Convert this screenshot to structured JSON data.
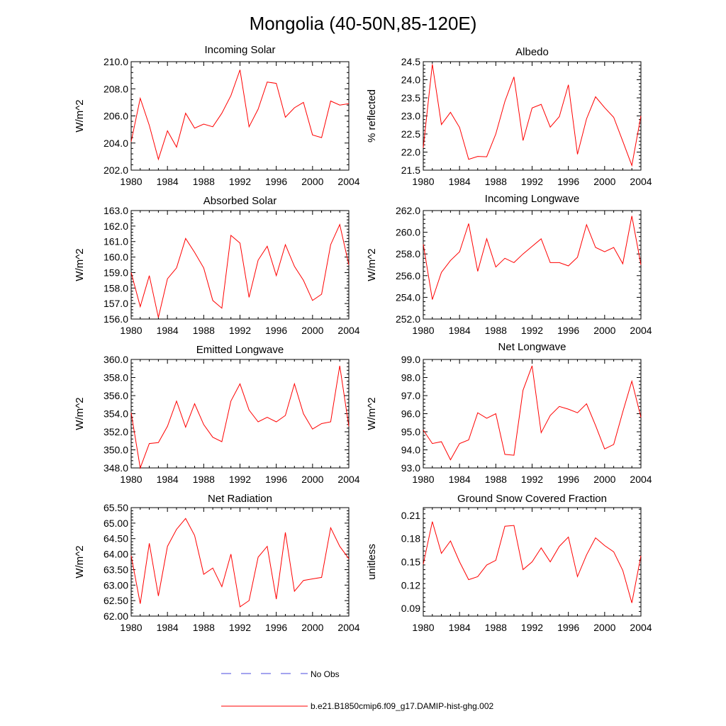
{
  "figure_title": "Mongolia (40-50N,85-120E)",
  "colors": {
    "model": "#ff0000",
    "obs": "#4a4adf",
    "axis": "#000000"
  },
  "legend": [
    {
      "label": "No Obs",
      "style": "dashed",
      "color": "#4a4adf"
    },
    {
      "label": "b.e21.B1850cmip6.f09_g17.DAMIP-hist-ghg.002",
      "style": "solid",
      "color": "#ff0000"
    }
  ],
  "chart_data": [
    {
      "type": "line",
      "title": "Incoming Solar",
      "ylabel": "W/m^2",
      "xlim": [
        1980,
        2004
      ],
      "ylim": [
        202.0,
        210.0
      ],
      "xticks": [
        1980,
        1984,
        1988,
        1992,
        1996,
        2000,
        2004
      ],
      "yticks": [
        "202.0",
        "204.0",
        "206.0",
        "208.0",
        "210.0"
      ],
      "x": [
        1980,
        1981,
        1982,
        1983,
        1984,
        1985,
        1986,
        1987,
        1988,
        1989,
        1990,
        1991,
        1992,
        1993,
        1994,
        1995,
        1996,
        1997,
        1998,
        1999,
        2000,
        2001,
        2002,
        2003,
        2004
      ],
      "series": [
        {
          "name": "b.e21.B1850cmip6.f09_g17.DAMIP-hist-ghg.002",
          "values": [
            204.1,
            207.3,
            205.3,
            202.8,
            204.9,
            203.7,
            206.2,
            205.1,
            205.4,
            205.2,
            206.2,
            207.5,
            209.4,
            205.2,
            206.5,
            208.5,
            208.4,
            205.9,
            206.6,
            207.0,
            204.6,
            204.4,
            207.1,
            206.8,
            206.9
          ]
        }
      ]
    },
    {
      "type": "line",
      "title": "Albedo",
      "ylabel": "% reflected",
      "xlim": [
        1980,
        2004
      ],
      "ylim": [
        21.5,
        24.5
      ],
      "xticks": [
        1980,
        1984,
        1988,
        1992,
        1996,
        2000,
        2004
      ],
      "yticks": [
        "21.5",
        "22.0",
        "22.5",
        "23.0",
        "23.5",
        "24.0",
        "24.5"
      ],
      "x": [
        1980,
        1981,
        1982,
        1983,
        1984,
        1985,
        1986,
        1987,
        1988,
        1989,
        1990,
        1991,
        1992,
        1993,
        1994,
        1995,
        1996,
        1997,
        1998,
        1999,
        2000,
        2001,
        2002,
        2003,
        2004
      ],
      "series": [
        {
          "name": "b.e21.B1850cmip6.f09_g17.DAMIP-hist-ghg.002",
          "values": [
            22.12,
            24.43,
            22.76,
            23.1,
            22.68,
            21.8,
            21.88,
            21.87,
            22.5,
            23.4,
            24.08,
            22.32,
            23.22,
            23.32,
            22.69,
            22.98,
            23.86,
            21.94,
            22.92,
            23.53,
            23.23,
            22.96,
            22.3,
            21.63,
            23.0
          ]
        }
      ]
    },
    {
      "type": "line",
      "title": "Absorbed Solar",
      "ylabel": "W/m^2",
      "xlim": [
        1980,
        2004
      ],
      "ylim": [
        156.0,
        163.0
      ],
      "xticks": [
        1980,
        1984,
        1988,
        1992,
        1996,
        2000,
        2004
      ],
      "yticks": [
        "156.0",
        "157.0",
        "158.0",
        "159.0",
        "160.0",
        "161.0",
        "162.0",
        "163.0"
      ],
      "x": [
        1980,
        1981,
        1982,
        1983,
        1984,
        1985,
        1986,
        1987,
        1988,
        1989,
        1990,
        1991,
        1992,
        1993,
        1994,
        1995,
        1996,
        1997,
        1998,
        1999,
        2000,
        2001,
        2002,
        2003,
        2004
      ],
      "series": [
        {
          "name": "b.e21.B1850cmip6.f09_g17.DAMIP-hist-ghg.002",
          "values": [
            159.0,
            156.8,
            158.8,
            156.1,
            158.6,
            159.3,
            161.2,
            160.3,
            159.3,
            157.2,
            156.7,
            161.4,
            160.9,
            157.4,
            159.8,
            160.7,
            158.8,
            160.8,
            159.4,
            158.5,
            157.2,
            157.6,
            160.8,
            162.1,
            159.5
          ]
        }
      ]
    },
    {
      "type": "line",
      "title": "Incoming Longwave",
      "ylabel": "W/m^2",
      "xlim": [
        1980,
        2004
      ],
      "ylim": [
        252.0,
        262.0
      ],
      "xticks": [
        1980,
        1984,
        1988,
        1992,
        1996,
        2000,
        2004
      ],
      "yticks": [
        "252.0",
        "254.0",
        "256.0",
        "258.0",
        "260.0",
        "262.0"
      ],
      "x": [
        1980,
        1981,
        1982,
        1983,
        1984,
        1985,
        1986,
        1987,
        1988,
        1989,
        1990,
        1991,
        1992,
        1993,
        1994,
        1995,
        1996,
        1997,
        1998,
        1999,
        2000,
        2001,
        2002,
        2003,
        2004
      ],
      "series": [
        {
          "name": "b.e21.B1850cmip6.f09_g17.DAMIP-hist-ghg.002",
          "values": [
            258.9,
            253.8,
            256.3,
            257.4,
            258.2,
            260.8,
            256.4,
            259.4,
            256.8,
            257.6,
            257.2,
            258.0,
            258.7,
            259.4,
            257.2,
            257.2,
            256.9,
            257.7,
            260.7,
            258.6,
            258.2,
            258.6,
            257.1,
            261.5,
            257.0
          ]
        }
      ]
    },
    {
      "type": "line",
      "title": "Emitted Longwave",
      "ylabel": "W/m^2",
      "xlim": [
        1980,
        2004
      ],
      "ylim": [
        348.0,
        360.0
      ],
      "xticks": [
        1980,
        1984,
        1988,
        1992,
        1996,
        2000,
        2004
      ],
      "yticks": [
        "348.0",
        "350.0",
        "352.0",
        "354.0",
        "356.0",
        "358.0",
        "360.0"
      ],
      "x": [
        1980,
        1981,
        1982,
        1983,
        1984,
        1985,
        1986,
        1987,
        1988,
        1989,
        1990,
        1991,
        1992,
        1993,
        1994,
        1995,
        1996,
        1997,
        1998,
        1999,
        2000,
        2001,
        2002,
        2003,
        2004
      ],
      "series": [
        {
          "name": "b.e21.B1850cmip6.f09_g17.DAMIP-hist-ghg.002",
          "values": [
            354.1,
            348.0,
            350.7,
            350.8,
            352.6,
            355.4,
            352.5,
            355.1,
            352.8,
            351.4,
            350.9,
            355.4,
            357.3,
            354.4,
            353.1,
            353.6,
            353.1,
            353.8,
            357.3,
            354.0,
            352.3,
            352.9,
            353.1,
            359.3,
            352.6
          ]
        }
      ]
    },
    {
      "type": "line",
      "title": "Net Longwave",
      "ylabel": "W/m^2",
      "xlim": [
        1980,
        2004
      ],
      "ylim": [
        93.0,
        99.0
      ],
      "xticks": [
        1980,
        1984,
        1988,
        1992,
        1996,
        2000,
        2004
      ],
      "yticks": [
        "93.0",
        "94.0",
        "95.0",
        "96.0",
        "97.0",
        "98.0",
        "99.0"
      ],
      "x": [
        1980,
        1981,
        1982,
        1983,
        1984,
        1985,
        1986,
        1987,
        1988,
        1989,
        1990,
        1991,
        1992,
        1993,
        1994,
        1995,
        1996,
        1997,
        1998,
        1999,
        2000,
        2001,
        2002,
        2003,
        2004
      ],
      "series": [
        {
          "name": "b.e21.B1850cmip6.f09_g17.DAMIP-hist-ghg.002",
          "values": [
            95.1,
            94.35,
            94.45,
            93.45,
            94.35,
            94.55,
            96.05,
            95.75,
            96.0,
            93.75,
            93.7,
            97.3,
            98.65,
            94.95,
            95.9,
            96.4,
            96.25,
            96.05,
            96.55,
            95.35,
            94.05,
            94.3,
            96.1,
            97.8,
            95.8
          ]
        }
      ]
    },
    {
      "type": "line",
      "title": "Net Radiation",
      "ylabel": "W/m^2",
      "xlim": [
        1980,
        2004
      ],
      "ylim": [
        62.0,
        65.5
      ],
      "xticks": [
        1980,
        1984,
        1988,
        1992,
        1996,
        2000,
        2004
      ],
      "yticks": [
        "62.00",
        "62.50",
        "63.00",
        "63.50",
        "64.00",
        "64.50",
        "65.00",
        "65.50"
      ],
      "x": [
        1980,
        1981,
        1982,
        1983,
        1984,
        1985,
        1986,
        1987,
        1988,
        1989,
        1990,
        1991,
        1992,
        1993,
        1994,
        1995,
        1996,
        1997,
        1998,
        1999,
        2000,
        2001,
        2002,
        2003,
        2004
      ],
      "series": [
        {
          "name": "b.e21.B1850cmip6.f09_g17.DAMIP-hist-ghg.002",
          "values": [
            63.95,
            62.4,
            64.35,
            62.65,
            64.25,
            64.8,
            65.15,
            64.6,
            63.35,
            63.55,
            62.95,
            64.0,
            62.3,
            62.5,
            63.9,
            64.25,
            62.55,
            64.7,
            62.8,
            63.15,
            63.2,
            63.25,
            64.85,
            64.25,
            63.85
          ]
        }
      ]
    },
    {
      "type": "line",
      "title": "Ground Snow Covered Fraction",
      "ylabel": "unitless",
      "xlim": [
        1980,
        2004
      ],
      "ylim": [
        0.08,
        0.22
      ],
      "xticks": [
        1980,
        1984,
        1988,
        1992,
        1996,
        2000,
        2004
      ],
      "yticks": [
        "0.09",
        "0.12",
        "0.15",
        "0.18",
        "0.21"
      ],
      "ytick_values": [
        0.09,
        0.12,
        0.15,
        0.18,
        0.21
      ],
      "x": [
        1980,
        1981,
        1982,
        1983,
        1984,
        1985,
        1986,
        1987,
        1988,
        1989,
        1990,
        1991,
        1992,
        1993,
        1994,
        1995,
        1996,
        1997,
        1998,
        1999,
        2000,
        2001,
        2002,
        2003,
        2004
      ],
      "series": [
        {
          "name": "b.e21.B1850cmip6.f09_g17.DAMIP-hist-ghg.002",
          "values": [
            0.147,
            0.202,
            0.161,
            0.177,
            0.15,
            0.127,
            0.131,
            0.146,
            0.152,
            0.196,
            0.197,
            0.14,
            0.15,
            0.168,
            0.15,
            0.17,
            0.182,
            0.131,
            0.159,
            0.181,
            0.171,
            0.163,
            0.139,
            0.097,
            0.158
          ]
        }
      ]
    }
  ]
}
